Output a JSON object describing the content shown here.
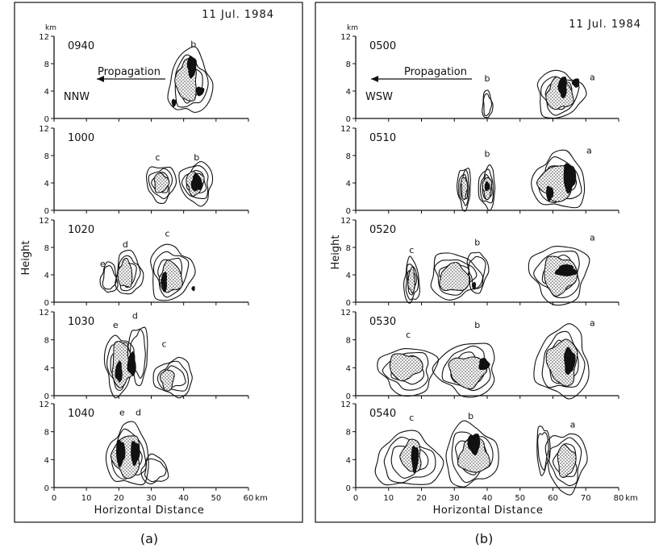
{
  "chart_data": [
    {
      "type": "other",
      "panel_label": "(a)",
      "date": "11 Jul. 1984",
      "xlabel": "Horizontal Distance",
      "ylabel": "Height",
      "y_unit": "km",
      "x_unit": "km",
      "xlim": [
        0,
        60
      ],
      "ylim": [
        0,
        12
      ],
      "xticks": [
        0,
        10,
        20,
        30,
        40,
        50,
        60
      ],
      "yticks": [
        0,
        4,
        8,
        12
      ],
      "propagation_label": "Propagation",
      "propagation_dir": "NNW",
      "subplots": [
        {
          "time": "0940",
          "cells": [
            {
              "label": "b",
              "cx": 42,
              "cy": 5.2,
              "rx": 6.5,
              "ry": 4.6,
              "levels": 3,
              "stipple": [
                41,
                5.5,
                3.2,
                3.0
              ],
              "cores": [
                [
                  42.5,
                  7.6,
                  1.3,
                  1.5
                ],
                [
                  45,
                  4,
                  1.2,
                  0.6
                ],
                [
                  37,
                  2.3,
                  0.6,
                  0.5
                ]
              ],
              "label_at": [
                43,
                10.4
              ]
            }
          ]
        },
        {
          "time": "1000",
          "cells": [
            {
              "label": "c",
              "cx": 33,
              "cy": 4,
              "rx": 4.5,
              "ry": 2.6,
              "levels": 3,
              "stipple": [
                33,
                4,
                2.2,
                1.4
              ],
              "cores": [],
              "label_at": [
                32,
                7.3
              ]
            },
            {
              "label": "b",
              "cx": 44,
              "cy": 4,
              "rx": 5,
              "ry": 3,
              "levels": 3,
              "stipple": [
                43.5,
                4,
                2.6,
                1.7
              ],
              "cores": [
                [
                  44,
                  4,
                  1.6,
                  1.2
                ]
              ],
              "label_at": [
                44,
                7.3
              ]
            }
          ]
        },
        {
          "time": "1020",
          "cells": [
            {
              "label": "e",
              "cx": 17,
              "cy": 3.5,
              "rx": 2.5,
              "ry": 2.2,
              "levels": 2,
              "stipple": null,
              "cores": [],
              "label_at": [
                15,
                5.2
              ]
            },
            {
              "label": "d",
              "cx": 23,
              "cy": 4.2,
              "rx": 4,
              "ry": 3.2,
              "levels": 3,
              "stipple": [
                22,
                4.1,
                2.2,
                2
              ],
              "cores": [],
              "label_at": [
                22,
                8
              ]
            },
            {
              "label": "c",
              "cx": 36,
              "cy": 4.3,
              "rx": 6.5,
              "ry": 4,
              "levels": 3,
              "stipple": [
                36,
                3.6,
                3.4,
                2.2
              ],
              "cores": [
                [
                  34,
                  3,
                  0.8,
                  1.4
                ],
                [
                  43,
                  2,
                  0.4,
                  0.3
                ]
              ],
              "label_at": [
                35,
                9.6
              ]
            }
          ]
        },
        {
          "time": "1030",
          "cells": [
            {
              "label": "e",
              "cx": 20,
              "cy": 4.5,
              "rx": 4.3,
              "ry": 4.2,
              "levels": 3,
              "stipple": [
                21,
                4.5,
                3.2,
                3.2
              ],
              "cores": [
                [
                  20,
                  3.4,
                  1,
                  1.4
                ],
                [
                  24,
                  4.5,
                  1.2,
                  1.6
                ]
              ],
              "label_at": [
                19,
                9.7
              ]
            },
            {
              "label": "d",
              "cx": 26,
              "cy": 6,
              "rx": 3,
              "ry": 4,
              "levels": 2,
              "stipple": null,
              "cores": [],
              "label_at": [
                25,
                11
              ]
            },
            {
              "label": "c",
              "cx": 37,
              "cy": 2.6,
              "rx": 6,
              "ry": 2.6,
              "levels": 3,
              "stipple": [
                35,
                2.3,
                2,
                1.5
              ],
              "cores": [],
              "label_at": [
                34,
                7
              ]
            }
          ]
        },
        {
          "time": "1040",
          "cells": [
            {
              "label": "e",
              "cx": 23,
              "cy": 4.5,
              "rx": 6.5,
              "ry": 4.3,
              "levels": 3,
              "stipple": [
                22.5,
                4.5,
                4.2,
                3
              ],
              "cores": [
                [
                  20.5,
                  5,
                  1.3,
                  1.8
                ],
                [
                  25,
                  5,
                  1.3,
                  1.6
                ]
              ],
              "label_at": [
                21,
                10.3
              ]
            },
            {
              "label": "d",
              "cx": 31,
              "cy": 2.5,
              "rx": 4,
              "ry": 2,
              "levels": 2,
              "stipple": null,
              "cores": [],
              "label_at": [
                26,
                10.3
              ]
            }
          ]
        }
      ]
    },
    {
      "type": "other",
      "panel_label": "(b)",
      "date": "11 Jul. 1984",
      "xlabel": "Horizontal Distance",
      "ylabel": "Height",
      "y_unit": "km",
      "x_unit": "km",
      "xlim": [
        0,
        80
      ],
      "ylim": [
        0,
        12
      ],
      "xticks": [
        0,
        10,
        20,
        30,
        40,
        50,
        60,
        70,
        80
      ],
      "yticks": [
        0,
        4,
        8,
        12
      ],
      "propagation_label": "Propagation",
      "propagation_dir": "WSW",
      "subplots": [
        {
          "time": "0500",
          "cells": [
            {
              "label": "b",
              "cx": 40,
              "cy": 2,
              "rx": 1.5,
              "ry": 2,
              "levels": 2,
              "stipple": null,
              "cores": [],
              "label_at": [
                40,
                5.4
              ]
            },
            {
              "label": "a",
              "cx": 62,
              "cy": 3.5,
              "rx": 7,
              "ry": 3.4,
              "levels": 3,
              "stipple": [
                62,
                3.5,
                4,
                2.2
              ],
              "cores": [
                [
                  63,
                  4.6,
                  1.2,
                  1.5
                ],
                [
                  67,
                  5.2,
                  1,
                  0.6
                ]
              ],
              "label_at": [
                72,
                5.6
              ]
            }
          ]
        },
        {
          "time": "0510",
          "cells": [
            {
              "label": "",
              "cx": 33,
              "cy": 3.3,
              "rx": 2,
              "ry": 3,
              "levels": 3,
              "stipple": [
                33,
                3.3,
                0.9,
                1.6
              ],
              "cores": [],
              "label_at": null
            },
            {
              "label": "b",
              "cx": 40,
              "cy": 3.3,
              "rx": 2.5,
              "ry": 3,
              "levels": 3,
              "stipple": [
                40,
                3.3,
                1.3,
                1.6
              ],
              "cores": [
                [
                  40,
                  3.5,
                  0.7,
                  0.6
                ]
              ],
              "label_at": [
                40,
                7.8
              ]
            },
            {
              "label": "a",
              "cx": 62,
              "cy": 4.2,
              "rx": 8,
              "ry": 4,
              "levels": 3,
              "stipple": [
                61,
                4,
                5,
                2.6
              ],
              "cores": [
                [
                  65,
                  4.8,
                  1.8,
                  2
                ],
                [
                  59,
                  2.5,
                  1,
                  1
                ]
              ],
              "label_at": [
                71,
                8.3
              ]
            }
          ]
        },
        {
          "time": "0520",
          "cells": [
            {
              "label": "c",
              "cx": 17,
              "cy": 3,
              "rx": 2.3,
              "ry": 3.2,
              "levels": 3,
              "stipple": [
                17,
                3.2,
                1,
                1.8
              ],
              "cores": [],
              "label_at": [
                17,
                7.2
              ]
            },
            {
              "label": "",
              "cx": 30,
              "cy": 3.8,
              "rx": 7.5,
              "ry": 3.3,
              "levels": 3,
              "stipple": [
                30,
                3.5,
                4.5,
                2
              ],
              "cores": [
                [
                  36,
                  2.4,
                  0.5,
                  0.5
                ]
              ],
              "label_at": null
            },
            {
              "label": "b",
              "cx": 37,
              "cy": 4.5,
              "rx": 3,
              "ry": 3,
              "levels": 2,
              "stipple": null,
              "cores": [],
              "label_at": [
                37,
                8.3
              ]
            },
            {
              "label": "a",
              "cx": 62,
              "cy": 4.2,
              "rx": 8.5,
              "ry": 4.3,
              "levels": 3,
              "stipple": [
                62,
                4,
                5,
                2.7
              ],
              "cores": [
                [
                  64,
                  4.6,
                  3,
                  0.8
                ]
              ],
              "label_at": [
                72,
                9
              ]
            }
          ]
        },
        {
          "time": "0530",
          "cells": [
            {
              "label": "c",
              "cx": 16,
              "cy": 3.6,
              "rx": 8.5,
              "ry": 3.4,
              "levels": 3,
              "stipple": [
                15,
                4.2,
                5,
                1.8
              ],
              "cores": [],
              "label_at": [
                16,
                8.3
              ]
            },
            {
              "label": "b",
              "cx": 34,
              "cy": 3.8,
              "rx": 9,
              "ry": 3.8,
              "levels": 3,
              "stipple": [
                34,
                3.5,
                5.5,
                2.2
              ],
              "cores": [
                [
                  39,
                  4.5,
                  1.5,
                  0.8
                ]
              ],
              "label_at": [
                37,
                9.7
              ]
            },
            {
              "label": "a",
              "cx": 63,
              "cy": 4.7,
              "rx": 8,
              "ry": 5,
              "levels": 3,
              "stipple": [
                63,
                4.8,
                4.5,
                3.2
              ],
              "cores": [
                [
                  65,
                  5,
                  1.6,
                  1.8
                ]
              ],
              "label_at": [
                72,
                10
              ]
            }
          ]
        },
        {
          "time": "0540",
          "cells": [
            {
              "label": "c",
              "cx": 16,
              "cy": 3.8,
              "rx": 10,
              "ry": 3.8,
              "levels": 3,
              "stipple": [
                17,
                4.5,
                3,
                2.3
              ],
              "cores": [
                [
                  18,
                  4.2,
                  1,
                  1.8
                ]
              ],
              "label_at": [
                17,
                9.6
              ]
            },
            {
              "label": "b",
              "cx": 35,
              "cy": 4.6,
              "rx": 8,
              "ry": 4.3,
              "levels": 3,
              "stipple": [
                36,
                4.5,
                4.5,
                2.5
              ],
              "cores": [
                [
                  36,
                  6.3,
                  1.8,
                  1.4
                ]
              ],
              "label_at": [
                35,
                9.8
              ]
            },
            {
              "label": "",
              "cx": 57,
              "cy": 5.5,
              "rx": 2,
              "ry": 3.3,
              "levels": 2,
              "stipple": null,
              "cores": [],
              "label_at": null
            },
            {
              "label": "a",
              "cx": 64,
              "cy": 3.8,
              "rx": 6,
              "ry": 4.2,
              "levels": 3,
              "stipple": [
                64,
                3.8,
                2.7,
                2.2
              ],
              "cores": [],
              "label_at": [
                66,
                8.6
              ]
            }
          ]
        }
      ]
    }
  ]
}
